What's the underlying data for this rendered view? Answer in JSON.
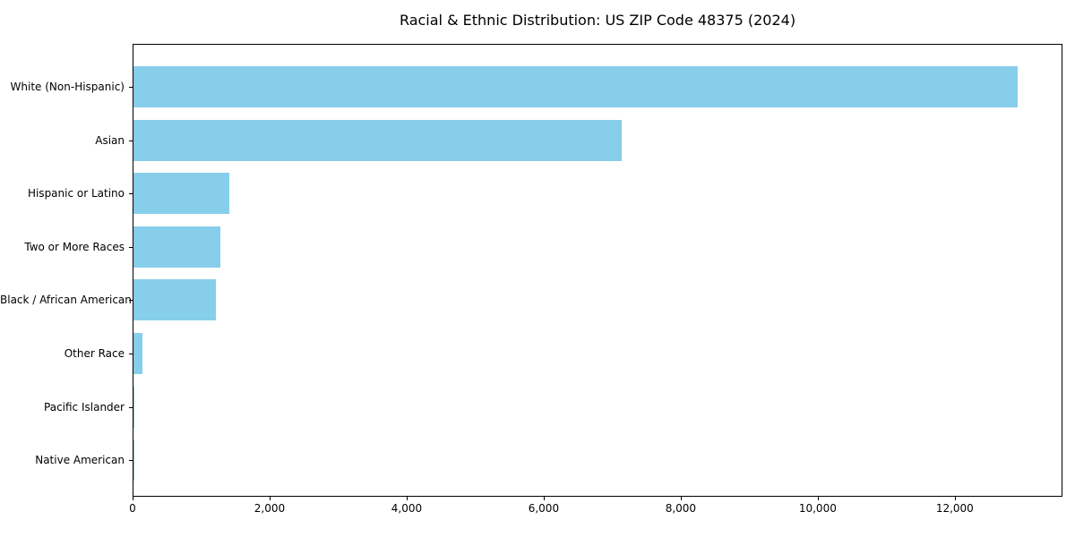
{
  "chart_data": {
    "type": "bar",
    "orientation": "horizontal",
    "title": "Racial & Ethnic Distribution: US ZIP Code 48375 (2024)",
    "categories": [
      "White (Non-Hispanic)",
      "Asian",
      "Hispanic or Latino",
      "Two or More Races",
      "Black / African American",
      "Other Race",
      "Pacific Islander",
      "Native American"
    ],
    "values": [
      12900,
      7130,
      1400,
      1265,
      1200,
      130,
      10,
      5
    ],
    "xlabel": "",
    "ylabel": "",
    "xlim": [
      0,
      13545
    ],
    "x_ticks": [
      0,
      2000,
      4000,
      6000,
      8000,
      10000,
      12000
    ],
    "x_tick_labels": [
      "0",
      "2,000",
      "4,000",
      "6,000",
      "8,000",
      "10,000",
      "12,000"
    ],
    "bar_color": "#87CEEB",
    "frame_color": "#000000",
    "grid": false,
    "legend": null
  }
}
